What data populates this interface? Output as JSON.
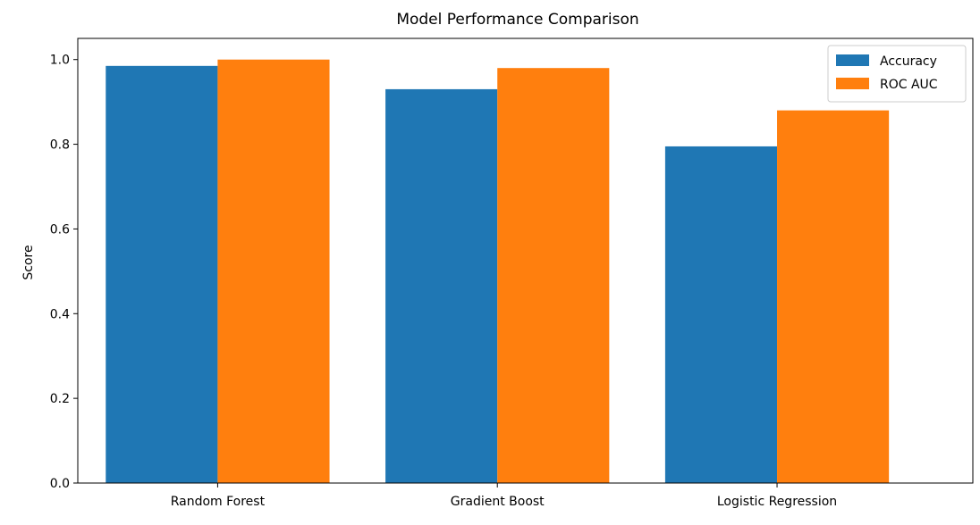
{
  "chart_data": {
    "type": "bar",
    "title": "Model Performance Comparison",
    "xlabel": "",
    "ylabel": "Score",
    "categories": [
      "Random Forest",
      "Gradient Boost",
      "Logistic Regression"
    ],
    "series": [
      {
        "name": "Accuracy",
        "color": "#1f77b4",
        "values": [
          0.985,
          0.93,
          0.795
        ]
      },
      {
        "name": "ROC AUC",
        "color": "#ff7f0e",
        "values": [
          1.0,
          0.98,
          0.88
        ]
      }
    ],
    "ylim": [
      0,
      1.05
    ],
    "yticks": [
      0.0,
      0.2,
      0.4,
      0.6,
      0.8,
      1.0
    ],
    "ytick_labels": [
      "0.0",
      "0.2",
      "0.4",
      "0.6",
      "0.8",
      "1.0"
    ],
    "grid": false,
    "legend_position": "top-right"
  }
}
